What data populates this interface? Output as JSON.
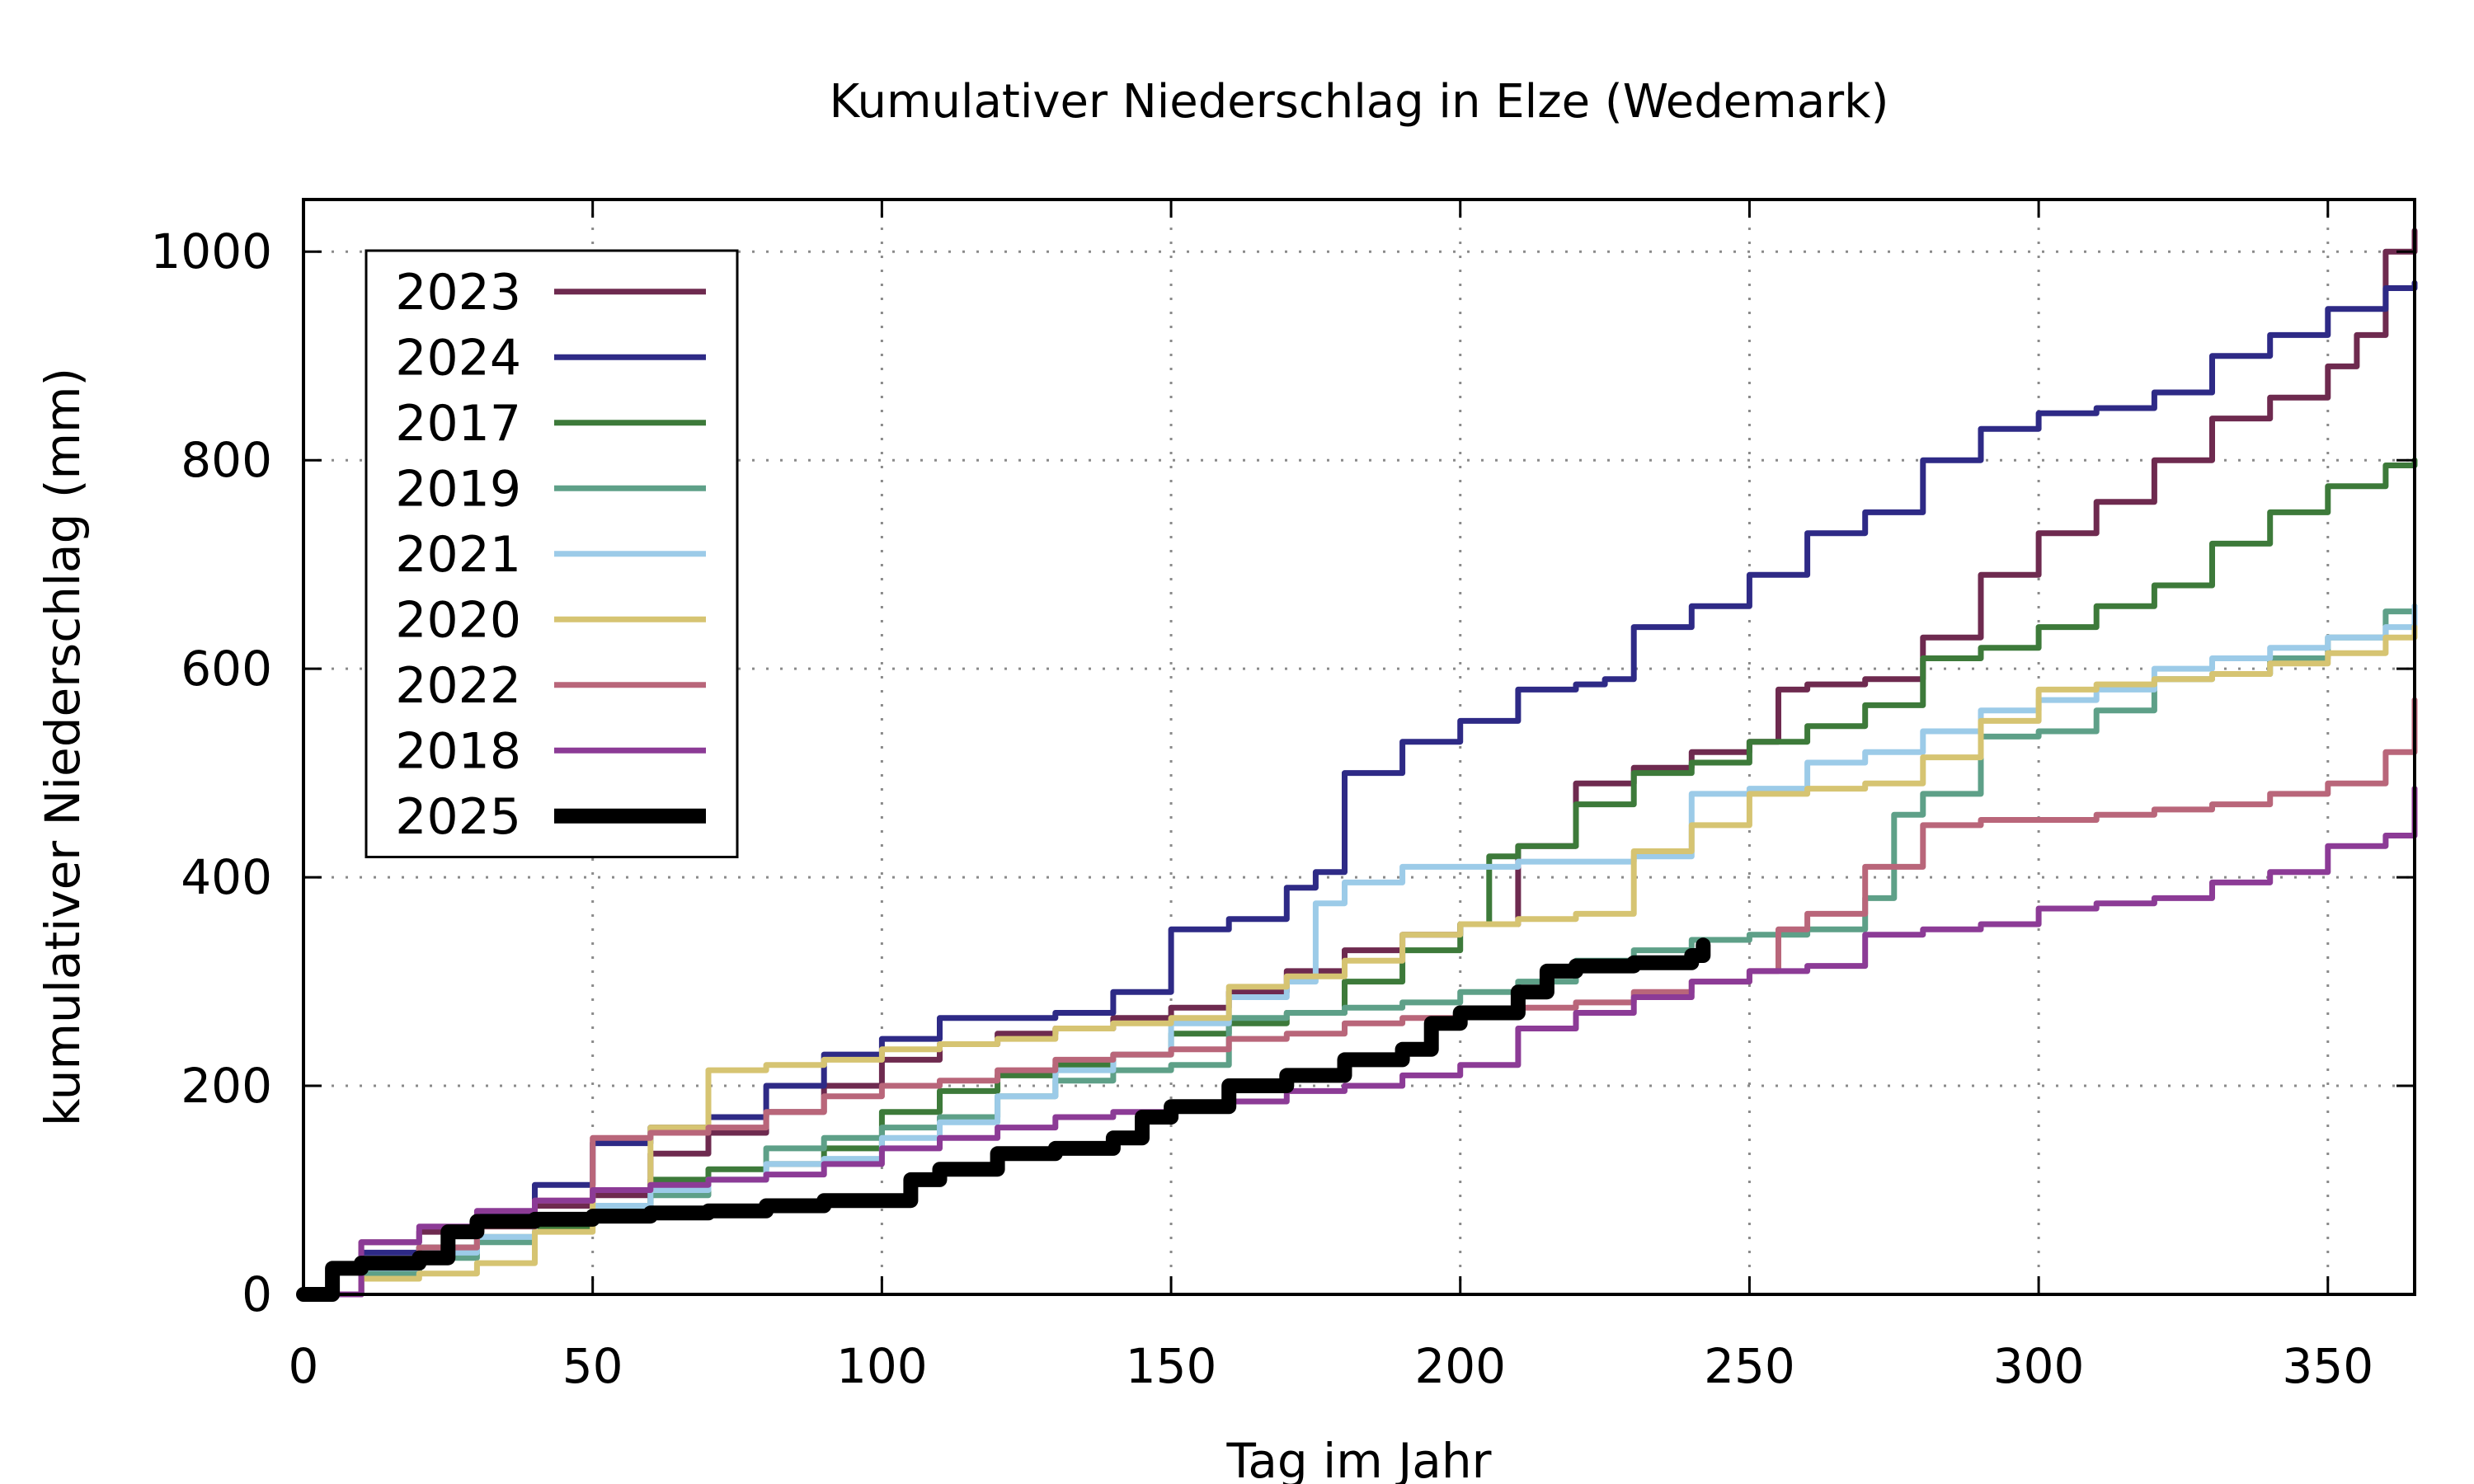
{
  "chart_data": {
    "type": "line",
    "title": "Kumulativer Niederschlag in Elze (Wedemark)",
    "xlabel": "Tag im Jahr",
    "ylabel": "kumulativer Niederschlag (mm)",
    "xlim": [
      0,
      365
    ],
    "ylim": [
      0,
      1050
    ],
    "x_ticks": [
      0,
      50,
      100,
      150,
      200,
      250,
      300,
      350
    ],
    "y_ticks": [
      0,
      200,
      400,
      600,
      800,
      1000
    ],
    "grid": true,
    "legend_position": "top-left",
    "series": [
      {
        "name": "2023",
        "color": "#6e2a4f",
        "x": [
          0,
          10,
          20,
          30,
          40,
          50,
          60,
          70,
          80,
          90,
          100,
          110,
          120,
          130,
          140,
          150,
          160,
          170,
          180,
          190,
          200,
          210,
          220,
          230,
          240,
          250,
          255,
          260,
          270,
          280,
          290,
          300,
          310,
          320,
          330,
          340,
          350,
          355,
          360,
          365
        ],
        "y": [
          0,
          50,
          60,
          75,
          85,
          95,
          135,
          155,
          175,
          200,
          225,
          240,
          250,
          255,
          265,
          275,
          290,
          310,
          330,
          345,
          355,
          430,
          490,
          505,
          520,
          530,
          580,
          585,
          590,
          630,
          690,
          730,
          760,
          800,
          840,
          860,
          890,
          920,
          1000,
          1020
        ]
      },
      {
        "name": "2024",
        "color": "#2e2a86",
        "x": [
          0,
          10,
          20,
          30,
          40,
          50,
          60,
          70,
          80,
          90,
          100,
          110,
          120,
          130,
          140,
          150,
          160,
          170,
          175,
          180,
          190,
          200,
          210,
          220,
          225,
          230,
          240,
          250,
          260,
          270,
          280,
          290,
          300,
          310,
          320,
          330,
          340,
          350,
          360,
          365
        ],
        "y": [
          0,
          40,
          45,
          75,
          105,
          145,
          160,
          170,
          200,
          230,
          245,
          265,
          265,
          270,
          290,
          350,
          360,
          390,
          405,
          500,
          530,
          550,
          580,
          585,
          590,
          640,
          660,
          690,
          730,
          750,
          800,
          830,
          845,
          850,
          865,
          900,
          920,
          945,
          965,
          970
        ]
      },
      {
        "name": "2017",
        "color": "#3d7a3a",
        "x": [
          0,
          10,
          20,
          30,
          40,
          50,
          60,
          70,
          80,
          90,
          100,
          110,
          120,
          130,
          140,
          150,
          160,
          170,
          180,
          190,
          200,
          205,
          210,
          220,
          230,
          240,
          250,
          260,
          270,
          280,
          290,
          300,
          310,
          320,
          330,
          340,
          350,
          360,
          365
        ],
        "y": [
          0,
          30,
          45,
          55,
          65,
          80,
          110,
          120,
          125,
          140,
          175,
          195,
          210,
          220,
          230,
          250,
          260,
          270,
          300,
          330,
          355,
          420,
          430,
          470,
          500,
          510,
          530,
          545,
          565,
          610,
          620,
          640,
          660,
          680,
          720,
          750,
          775,
          795,
          800
        ]
      },
      {
        "name": "2019",
        "color": "#5ea088",
        "x": [
          0,
          10,
          20,
          30,
          40,
          50,
          60,
          70,
          80,
          90,
          100,
          110,
          120,
          130,
          140,
          150,
          160,
          170,
          180,
          190,
          200,
          210,
          220,
          230,
          240,
          250,
          260,
          270,
          275,
          280,
          290,
          300,
          310,
          320,
          330,
          340,
          350,
          360,
          365
        ],
        "y": [
          0,
          20,
          35,
          50,
          70,
          85,
          95,
          110,
          140,
          150,
          160,
          170,
          190,
          205,
          215,
          220,
          265,
          270,
          275,
          280,
          290,
          300,
          320,
          330,
          340,
          345,
          350,
          380,
          460,
          480,
          535,
          540,
          560,
          590,
          595,
          610,
          630,
          655,
          660
        ]
      },
      {
        "name": "2021",
        "color": "#9ccbe8",
        "x": [
          0,
          10,
          20,
          30,
          40,
          50,
          60,
          70,
          80,
          90,
          100,
          110,
          120,
          130,
          140,
          150,
          160,
          170,
          175,
          180,
          190,
          200,
          210,
          220,
          230,
          240,
          250,
          260,
          270,
          280,
          290,
          300,
          310,
          320,
          330,
          340,
          350,
          360,
          365
        ],
        "y": [
          0,
          25,
          40,
          55,
          70,
          85,
          100,
          110,
          125,
          130,
          150,
          165,
          190,
          215,
          230,
          260,
          285,
          300,
          375,
          395,
          410,
          410,
          415,
          415,
          420,
          480,
          485,
          510,
          520,
          540,
          560,
          570,
          580,
          600,
          610,
          620,
          630,
          640,
          660
        ]
      },
      {
        "name": "2020",
        "color": "#d6c472",
        "x": [
          0,
          10,
          20,
          30,
          40,
          50,
          60,
          70,
          80,
          90,
          100,
          110,
          120,
          130,
          140,
          150,
          160,
          170,
          180,
          190,
          200,
          210,
          220,
          230,
          240,
          250,
          260,
          270,
          280,
          290,
          300,
          310,
          320,
          330,
          340,
          350,
          360,
          365
        ],
        "y": [
          0,
          15,
          20,
          30,
          60,
          100,
          160,
          215,
          220,
          225,
          235,
          240,
          245,
          255,
          260,
          265,
          295,
          305,
          320,
          345,
          355,
          360,
          365,
          425,
          450,
          480,
          485,
          490,
          515,
          550,
          580,
          585,
          590,
          595,
          605,
          615,
          630,
          640
        ]
      },
      {
        "name": "2022",
        "color": "#b9667a",
        "x": [
          0,
          10,
          20,
          30,
          40,
          50,
          60,
          70,
          80,
          90,
          100,
          110,
          120,
          130,
          140,
          150,
          160,
          170,
          180,
          190,
          200,
          210,
          220,
          230,
          240,
          250,
          255,
          260,
          270,
          280,
          290,
          300,
          310,
          320,
          330,
          340,
          350,
          360,
          365
        ],
        "y": [
          0,
          30,
          45,
          65,
          90,
          150,
          155,
          160,
          175,
          190,
          200,
          205,
          215,
          225,
          230,
          235,
          245,
          250,
          260,
          265,
          270,
          275,
          280,
          290,
          300,
          310,
          350,
          365,
          410,
          450,
          455,
          455,
          460,
          465,
          470,
          480,
          490,
          520,
          570
        ]
      },
      {
        "name": "2018",
        "color": "#8c3b96",
        "x": [
          0,
          10,
          20,
          30,
          40,
          50,
          60,
          70,
          80,
          90,
          100,
          110,
          120,
          130,
          140,
          150,
          160,
          170,
          180,
          190,
          200,
          210,
          220,
          230,
          240,
          250,
          260,
          270,
          280,
          290,
          300,
          310,
          320,
          330,
          340,
          350,
          360,
          365
        ],
        "y": [
          0,
          50,
          65,
          80,
          90,
          100,
          105,
          110,
          115,
          125,
          140,
          150,
          160,
          170,
          175,
          180,
          185,
          195,
          200,
          210,
          220,
          255,
          270,
          285,
          300,
          310,
          315,
          345,
          350,
          355,
          370,
          375,
          380,
          395,
          405,
          430,
          440,
          485
        ]
      },
      {
        "name": "2025",
        "color": "#000000",
        "x": [
          0,
          5,
          10,
          20,
          25,
          30,
          40,
          50,
          60,
          70,
          80,
          90,
          100,
          105,
          110,
          120,
          130,
          140,
          145,
          150,
          160,
          170,
          180,
          190,
          195,
          200,
          210,
          215,
          220,
          230,
          240,
          242
        ],
        "y": [
          0,
          25,
          30,
          35,
          60,
          70,
          72,
          75,
          78,
          80,
          85,
          90,
          90,
          110,
          120,
          135,
          140,
          150,
          170,
          180,
          200,
          210,
          225,
          235,
          260,
          270,
          290,
          310,
          315,
          318,
          325,
          335
        ]
      }
    ]
  }
}
